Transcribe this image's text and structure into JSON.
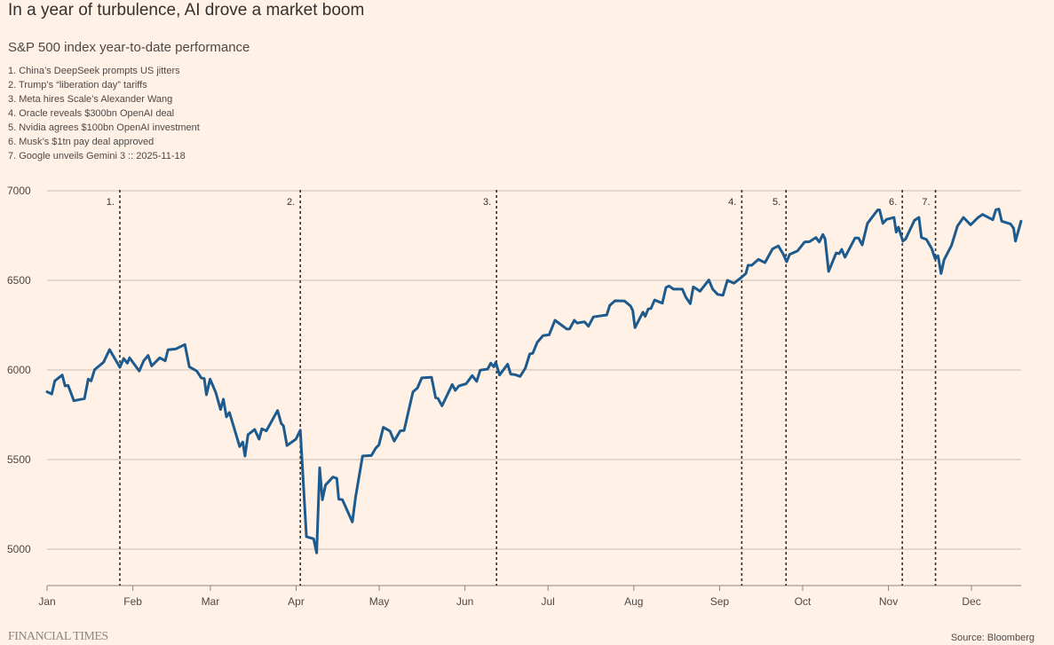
{
  "colors": {
    "background": "#fff1e5",
    "line": "#1d5a8e",
    "grid": "#cbbdb2",
    "event": "#33302e"
  },
  "chart_data": {
    "type": "line",
    "title": "In a year of turbulence, AI drove a market boom",
    "subtitle": "S&P 500 index year-to-date performance",
    "notes": [
      "1. China’s DeepSeek prompts US jitters",
      "2. Trump’s “liberation day” tariffs",
      "3. Meta hires Scale’s Alexander Wang",
      "4. Oracle reveals $300bn OpenAI deal",
      "5. Nvidia agrees $100bn OpenAI investment",
      "6. Musk’s $1tn pay deal approved",
      "7. Google unveils Gemini 3 :: 2025-11-18"
    ],
    "xlabel": "",
    "ylabel": "",
    "x_unit": "day of year (0 = Jan 1)",
    "xlim": [
      0,
      352
    ],
    "ylim": [
      4800,
      7000
    ],
    "y_ticks": [
      "5000",
      "5500",
      "6000",
      "6500",
      "7000"
    ],
    "x_ticks": [
      {
        "label": "Jan",
        "day": 0
      },
      {
        "label": "Feb",
        "day": 31
      },
      {
        "label": "Mar",
        "day": 59
      },
      {
        "label": "Apr",
        "day": 90
      },
      {
        "label": "May",
        "day": 120
      },
      {
        "label": "Jun",
        "day": 151
      },
      {
        "label": "Jul",
        "day": 181
      },
      {
        "label": "Aug",
        "day": 212
      },
      {
        "label": "Sep",
        "day": 243
      },
      {
        "label": "Oct",
        "day": 273
      },
      {
        "label": "Nov",
        "day": 304
      },
      {
        "label": "Dec",
        "day": 334
      }
    ],
    "grid": true,
    "events": [
      {
        "label": "1.",
        "day": 26.3
      },
      {
        "label": "2.",
        "day": 91.5
      },
      {
        "label": "3.",
        "day": 162.4
      },
      {
        "label": "4.",
        "day": 251
      },
      {
        "label": "5.",
        "day": 267
      },
      {
        "label": "6.",
        "day": 309
      },
      {
        "label": "7.",
        "day": 321
      }
    ],
    "series": [
      {
        "name": "S&P 500",
        "points": [
          [
            0,
            5878
          ],
          [
            1.7,
            5866
          ],
          [
            2.8,
            5939
          ],
          [
            5.5,
            5972
          ],
          [
            6.5,
            5911
          ],
          [
            7.6,
            5914
          ],
          [
            9.7,
            5828
          ],
          [
            13.5,
            5840
          ],
          [
            14.9,
            5949
          ],
          [
            15.9,
            5939
          ],
          [
            17.2,
            6002
          ],
          [
            20.4,
            6043
          ],
          [
            22.6,
            6114
          ],
          [
            26.3,
            6015
          ],
          [
            27.7,
            6064
          ],
          [
            29,
            6038
          ],
          [
            29.8,
            6068
          ],
          [
            33.3,
            5994
          ],
          [
            34.9,
            6051
          ],
          [
            36.5,
            6081
          ],
          [
            37.8,
            6023
          ],
          [
            40.7,
            6068
          ],
          [
            42.7,
            6051
          ],
          [
            43.7,
            6113
          ],
          [
            46.6,
            6118
          ],
          [
            49.8,
            6142
          ],
          [
            51.4,
            6018
          ],
          [
            54.1,
            5994
          ],
          [
            55.7,
            5956
          ],
          [
            56.8,
            5952
          ],
          [
            57.6,
            5862
          ],
          [
            58.9,
            5949
          ],
          [
            61,
            5873
          ],
          [
            62.7,
            5779
          ],
          [
            63.7,
            5837
          ],
          [
            64.8,
            5738
          ],
          [
            65.9,
            5763
          ],
          [
            69.6,
            5573
          ],
          [
            70.7,
            5598
          ],
          [
            71.5,
            5520
          ],
          [
            72.6,
            5639
          ],
          [
            75,
            5668
          ],
          [
            76.6,
            5614
          ],
          [
            77.6,
            5672
          ],
          [
            79.2,
            5660
          ],
          [
            81.4,
            5721
          ],
          [
            83.3,
            5774
          ],
          [
            84.6,
            5702
          ],
          [
            85.4,
            5688
          ],
          [
            86.7,
            5578
          ],
          [
            89.9,
            5614
          ],
          [
            91.5,
            5664
          ],
          [
            93.7,
            5070
          ],
          [
            96.3,
            5058
          ],
          [
            97.4,
            4979
          ],
          [
            98.5,
            5454
          ],
          [
            99.5,
            5276
          ],
          [
            100.6,
            5358
          ],
          [
            103.3,
            5403
          ],
          [
            104.7,
            5395
          ],
          [
            105.4,
            5279
          ],
          [
            106.7,
            5276
          ],
          [
            110.3,
            5152
          ],
          [
            111.5,
            5292
          ],
          [
            114,
            5520
          ],
          [
            117.2,
            5523
          ],
          [
            118.8,
            5565
          ],
          [
            119.9,
            5581
          ],
          [
            121.5,
            5680
          ],
          [
            123.9,
            5659
          ],
          [
            125.4,
            5603
          ],
          [
            127.6,
            5660
          ],
          [
            129,
            5663
          ],
          [
            132.2,
            5878
          ],
          [
            133.8,
            5899
          ],
          [
            135.4,
            5956
          ],
          [
            138.9,
            5959
          ],
          [
            140.4,
            5845
          ],
          [
            141.2,
            5842
          ],
          [
            142.7,
            5800
          ],
          [
            146.4,
            5919
          ],
          [
            147.5,
            5886
          ],
          [
            148.8,
            5911
          ],
          [
            151.4,
            5923
          ],
          [
            153.6,
            5969
          ],
          [
            155.2,
            5936
          ],
          [
            156.5,
            5999
          ],
          [
            159.2,
            6005
          ],
          [
            160.3,
            6038
          ],
          [
            161.4,
            6018
          ],
          [
            162.1,
            6043
          ],
          [
            163.5,
            5972
          ],
          [
            166.4,
            6032
          ],
          [
            167.5,
            5977
          ],
          [
            169.1,
            5974
          ],
          [
            170.9,
            5964
          ],
          [
            172.8,
            6010
          ],
          [
            174.4,
            6089
          ],
          [
            175.5,
            6093
          ],
          [
            177.1,
            6154
          ],
          [
            179.2,
            6192
          ],
          [
            181.4,
            6196
          ],
          [
            183.5,
            6277
          ],
          [
            187.8,
            6228
          ],
          [
            188.8,
            6229
          ],
          [
            190.5,
            6277
          ],
          [
            191.5,
            6262
          ],
          [
            194.2,
            6269
          ],
          [
            195.6,
            6244
          ],
          [
            197.4,
            6296
          ],
          [
            202.2,
            6307
          ],
          [
            203.3,
            6360
          ],
          [
            205.2,
            6386
          ],
          [
            208.6,
            6385
          ],
          [
            210.8,
            6357
          ],
          [
            211.6,
            6332
          ],
          [
            212.4,
            6236
          ],
          [
            215.3,
            6323
          ],
          [
            216.1,
            6299
          ],
          [
            217.2,
            6340
          ],
          [
            218.2,
            6343
          ],
          [
            219.5,
            6390
          ],
          [
            222.3,
            6373
          ],
          [
            223.6,
            6460
          ],
          [
            224.7,
            6469
          ],
          [
            226.3,
            6451
          ],
          [
            229.5,
            6451
          ],
          [
            230.8,
            6406
          ],
          [
            232.4,
            6370
          ],
          [
            233.5,
            6464
          ],
          [
            235.9,
            6439
          ],
          [
            239.1,
            6502
          ],
          [
            240.5,
            6451
          ],
          [
            242.3,
            6422
          ],
          [
            244.2,
            6417
          ],
          [
            245.8,
            6500
          ],
          [
            248.2,
            6484
          ],
          [
            251.2,
            6521
          ],
          [
            252.5,
            6538
          ],
          [
            253.3,
            6584
          ],
          [
            254.6,
            6584
          ],
          [
            257,
            6617
          ],
          [
            259.4,
            6599
          ],
          [
            262.1,
            6675
          ],
          [
            264.2,
            6692
          ],
          [
            265.9,
            6649
          ],
          [
            267.2,
            6604
          ],
          [
            268.3,
            6645
          ],
          [
            271.2,
            6665
          ],
          [
            273.7,
            6714
          ],
          [
            275.5,
            6716
          ],
          [
            277.8,
            6739
          ],
          [
            279,
            6714
          ],
          [
            280.3,
            6756
          ],
          [
            281.1,
            6731
          ],
          [
            282.4,
            6550
          ],
          [
            285.1,
            6653
          ],
          [
            286.2,
            6649
          ],
          [
            287.1,
            6673
          ],
          [
            288.3,
            6629
          ],
          [
            291.9,
            6736
          ],
          [
            293.2,
            6736
          ],
          [
            294.5,
            6698
          ],
          [
            296.4,
            6818
          ],
          [
            300.1,
            6893
          ],
          [
            300.8,
            6893
          ],
          [
            302,
            6818
          ],
          [
            303.3,
            6840
          ],
          [
            306,
            6851
          ],
          [
            306.8,
            6769
          ],
          [
            307.6,
            6797
          ],
          [
            309.2,
            6719
          ],
          [
            310.2,
            6731
          ],
          [
            313.4,
            6835
          ],
          [
            315,
            6851
          ],
          [
            315.9,
            6739
          ],
          [
            317.7,
            6728
          ],
          [
            319.6,
            6678
          ],
          [
            320.9,
            6620
          ],
          [
            321.9,
            6637
          ],
          [
            323,
            6538
          ],
          [
            324.1,
            6615
          ],
          [
            326.8,
            6695
          ],
          [
            328.9,
            6802
          ],
          [
            331.1,
            6851
          ],
          [
            333.7,
            6810
          ],
          [
            336.4,
            6851
          ],
          [
            338,
            6868
          ],
          [
            341.7,
            6838
          ],
          [
            342.8,
            6893
          ],
          [
            343.9,
            6898
          ],
          [
            344.9,
            6830
          ],
          [
            348.1,
            6815
          ],
          [
            349.2,
            6791
          ],
          [
            349.9,
            6719
          ],
          [
            351.9,
            6830
          ]
        ]
      }
    ]
  },
  "footer": {
    "logo": "FINANCIAL TIMES",
    "source": "Source: Bloomberg"
  }
}
